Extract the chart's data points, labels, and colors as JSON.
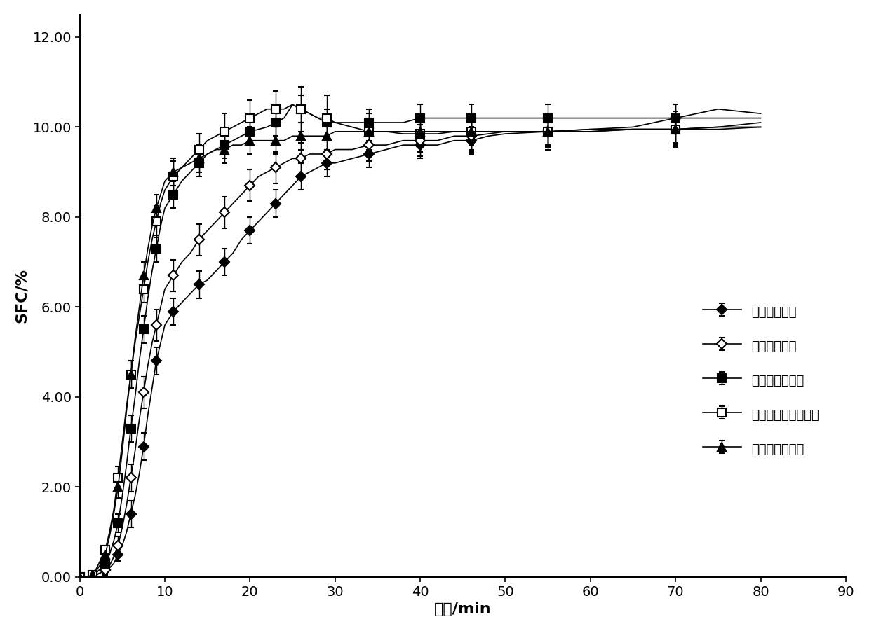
{
  "title": "",
  "xlabel": "时间/min",
  "ylabel": "SFC/%",
  "xlim": [
    0,
    90
  ],
  "ylim": [
    0,
    12.5
  ],
  "yticks": [
    0.0,
    2.0,
    4.0,
    6.0,
    8.0,
    10.0,
    12.0
  ],
  "xticks": [
    0,
    10,
    20,
    30,
    40,
    50,
    60,
    70,
    80,
    90
  ],
  "series": [
    {
      "label": "原料油未超声",
      "marker": "D",
      "marker_size": 7,
      "fillstyle": "full",
      "color": "#000000",
      "x": [
        0,
        0.5,
        1,
        1.5,
        2,
        2.5,
        3,
        3.5,
        4,
        4.5,
        5,
        5.5,
        6,
        6.5,
        7,
        7.5,
        8,
        8.5,
        9,
        9.5,
        10,
        11,
        12,
        13,
        14,
        15,
        16,
        17,
        18,
        19,
        20,
        21,
        22,
        23,
        24,
        25,
        26,
        27,
        28,
        29,
        30,
        32,
        34,
        36,
        38,
        40,
        42,
        44,
        46,
        48,
        50,
        55,
        60,
        65,
        70,
        75,
        80
      ],
      "y": [
        0,
        0,
        0,
        0,
        0.05,
        0.1,
        0.15,
        0.2,
        0.3,
        0.5,
        0.7,
        1.0,
        1.4,
        1.8,
        2.3,
        2.9,
        3.6,
        4.2,
        4.8,
        5.2,
        5.6,
        5.9,
        6.1,
        6.3,
        6.5,
        6.6,
        6.8,
        7.0,
        7.2,
        7.5,
        7.7,
        7.9,
        8.1,
        8.3,
        8.5,
        8.7,
        8.9,
        9.0,
        9.1,
        9.2,
        9.2,
        9.3,
        9.4,
        9.5,
        9.6,
        9.6,
        9.6,
        9.7,
        9.7,
        9.8,
        9.85,
        9.9,
        9.95,
        10.0,
        10.2,
        10.4,
        10.3
      ],
      "yerr": [
        0,
        0,
        0,
        0,
        0.05,
        0.05,
        0.1,
        0.1,
        0.1,
        0.15,
        0.2,
        0.2,
        0.3,
        0.3,
        0.3,
        0.3,
        0.3,
        0.3,
        0.3,
        0.3,
        0.3,
        0.3,
        0.3,
        0.3,
        0.3,
        0.3,
        0.3,
        0.3,
        0.3,
        0.3,
        0.3,
        0.3,
        0.3,
        0.3,
        0.3,
        0.3,
        0.3,
        0.3,
        0.3,
        0.3,
        0.3,
        0.3,
        0.3,
        0.3,
        0.3,
        0.3,
        0.3,
        0.3,
        0.3,
        0.3,
        0.3,
        0.3,
        0.3,
        0.3,
        0.3,
        0.4,
        0.3
      ]
    },
    {
      "label": "硬脂酰乳酸钠",
      "marker": "D",
      "marker_size": 7,
      "fillstyle": "none",
      "color": "#000000",
      "x": [
        0,
        0.5,
        1,
        1.5,
        2,
        2.5,
        3,
        3.5,
        4,
        4.5,
        5,
        5.5,
        6,
        6.5,
        7,
        7.5,
        8,
        8.5,
        9,
        9.5,
        10,
        11,
        12,
        13,
        14,
        15,
        16,
        17,
        18,
        19,
        20,
        21,
        22,
        23,
        24,
        25,
        26,
        27,
        28,
        29,
        30,
        32,
        34,
        36,
        38,
        40,
        42,
        44,
        46,
        48,
        50,
        55,
        60,
        65,
        70,
        75,
        80
      ],
      "y": [
        0,
        0,
        0,
        0,
        0.05,
        0.1,
        0.15,
        0.25,
        0.45,
        0.7,
        1.1,
        1.6,
        2.2,
        2.8,
        3.5,
        4.1,
        4.7,
        5.2,
        5.6,
        6.0,
        6.4,
        6.7,
        7.0,
        7.2,
        7.5,
        7.7,
        7.9,
        8.1,
        8.3,
        8.5,
        8.7,
        8.9,
        9.0,
        9.1,
        9.2,
        9.3,
        9.3,
        9.4,
        9.4,
        9.4,
        9.5,
        9.5,
        9.6,
        9.6,
        9.7,
        9.7,
        9.7,
        9.8,
        9.8,
        9.85,
        9.9,
        9.9,
        9.95,
        9.95,
        9.95,
        10.0,
        10.0
      ],
      "yerr": [
        0,
        0,
        0,
        0,
        0.05,
        0.05,
        0.1,
        0.1,
        0.15,
        0.2,
        0.25,
        0.3,
        0.3,
        0.3,
        0.3,
        0.35,
        0.35,
        0.35,
        0.35,
        0.35,
        0.35,
        0.35,
        0.35,
        0.35,
        0.35,
        0.35,
        0.35,
        0.35,
        0.35,
        0.35,
        0.35,
        0.35,
        0.35,
        0.35,
        0.35,
        0.35,
        0.35,
        0.35,
        0.35,
        0.35,
        0.35,
        0.35,
        0.35,
        0.35,
        0.35,
        0.35,
        0.35,
        0.35,
        0.35,
        0.35,
        0.35,
        0.35,
        0.35,
        0.35,
        0.35,
        0.35,
        0.35
      ]
    },
    {
      "label": "聚甘油脂肪酸酯",
      "marker": "s",
      "marker_size": 8,
      "fillstyle": "full",
      "color": "#000000",
      "x": [
        0,
        0.5,
        1,
        1.5,
        2,
        2.5,
        3,
        3.5,
        4,
        4.5,
        5,
        5.5,
        6,
        6.5,
        7,
        7.5,
        8,
        8.5,
        9,
        9.5,
        10,
        11,
        12,
        13,
        14,
        15,
        16,
        17,
        18,
        19,
        20,
        21,
        22,
        23,
        24,
        25,
        26,
        27,
        28,
        29,
        30,
        32,
        34,
        36,
        38,
        40,
        42,
        44,
        46,
        48,
        50,
        55,
        60,
        65,
        70,
        75,
        80
      ],
      "y": [
        0,
        0,
        0,
        0.05,
        0.1,
        0.2,
        0.3,
        0.5,
        0.8,
        1.2,
        1.8,
        2.5,
        3.3,
        4.0,
        4.8,
        5.5,
        6.2,
        6.8,
        7.3,
        7.8,
        8.2,
        8.5,
        8.8,
        9.0,
        9.2,
        9.4,
        9.5,
        9.6,
        9.7,
        9.8,
        9.9,
        9.95,
        10.0,
        10.1,
        10.2,
        10.5,
        10.4,
        10.3,
        10.2,
        10.1,
        10.1,
        10.1,
        10.1,
        10.1,
        10.1,
        10.2,
        10.2,
        10.2,
        10.2,
        10.2,
        10.2,
        10.2,
        10.2,
        10.2,
        10.2,
        10.2,
        10.2
      ],
      "yerr": [
        0,
        0,
        0,
        0.05,
        0.05,
        0.1,
        0.1,
        0.15,
        0.2,
        0.2,
        0.25,
        0.3,
        0.3,
        0.3,
        0.3,
        0.3,
        0.3,
        0.3,
        0.3,
        0.3,
        0.3,
        0.3,
        0.3,
        0.3,
        0.3,
        0.3,
        0.3,
        0.3,
        0.3,
        0.3,
        0.3,
        0.3,
        0.3,
        0.3,
        0.3,
        0.3,
        0.3,
        0.3,
        0.3,
        0.3,
        0.3,
        0.3,
        0.3,
        0.3,
        0.3,
        0.3,
        0.3,
        0.3,
        0.3,
        0.3,
        0.3,
        0.3,
        0.3,
        0.3,
        0.3,
        0.3,
        0.3
      ]
    },
    {
      "label": "蒸馏单硬脂酸甘油酯",
      "marker": "s",
      "marker_size": 8,
      "fillstyle": "none",
      "color": "#000000",
      "x": [
        0,
        0.5,
        1,
        1.5,
        2,
        2.5,
        3,
        3.5,
        4,
        4.5,
        5,
        5.5,
        6,
        6.5,
        7,
        7.5,
        8,
        8.5,
        9,
        9.5,
        10,
        11,
        12,
        13,
        14,
        15,
        16,
        17,
        18,
        19,
        20,
        21,
        22,
        23,
        24,
        25,
        26,
        27,
        28,
        29,
        30,
        32,
        34,
        36,
        38,
        40,
        42,
        44,
        46,
        48,
        50,
        55,
        60,
        65,
        70,
        75,
        80
      ],
      "y": [
        0,
        0,
        0,
        0.05,
        0.2,
        0.4,
        0.6,
        1.0,
        1.5,
        2.2,
        3.0,
        3.8,
        4.5,
        5.2,
        5.8,
        6.4,
        7.0,
        7.5,
        7.9,
        8.3,
        8.6,
        8.9,
        9.1,
        9.3,
        9.5,
        9.7,
        9.8,
        9.9,
        10.0,
        10.1,
        10.2,
        10.3,
        10.4,
        10.4,
        10.4,
        10.5,
        10.4,
        10.3,
        10.2,
        10.2,
        10.1,
        10.0,
        9.9,
        9.9,
        9.85,
        9.85,
        9.85,
        9.9,
        9.9,
        9.9,
        9.9,
        9.9,
        9.9,
        9.95,
        9.95,
        9.95,
        10.0
      ],
      "yerr": [
        0,
        0,
        0,
        0.05,
        0.05,
        0.1,
        0.1,
        0.15,
        0.2,
        0.25,
        0.3,
        0.3,
        0.3,
        0.3,
        0.3,
        0.3,
        0.3,
        0.35,
        0.35,
        0.35,
        0.35,
        0.35,
        0.35,
        0.35,
        0.35,
        0.4,
        0.4,
        0.4,
        0.4,
        0.4,
        0.4,
        0.4,
        0.4,
        0.4,
        0.5,
        0.5,
        0.5,
        0.5,
        0.5,
        0.5,
        0.5,
        0.5,
        0.4,
        0.4,
        0.4,
        0.4,
        0.4,
        0.4,
        0.4,
        0.4,
        0.4,
        0.4,
        0.4,
        0.4,
        0.4,
        0.4,
        0.4
      ]
    },
    {
      "label": "丙二醇脂肪酸酯",
      "marker": "^",
      "marker_size": 8,
      "fillstyle": "full",
      "color": "#000000",
      "x": [
        0,
        0.5,
        1,
        1.5,
        2,
        2.5,
        3,
        3.5,
        4,
        4.5,
        5,
        5.5,
        6,
        6.5,
        7,
        7.5,
        8,
        8.5,
        9,
        9.5,
        10,
        11,
        12,
        13,
        14,
        15,
        16,
        17,
        18,
        19,
        20,
        21,
        22,
        23,
        24,
        25,
        26,
        27,
        28,
        29,
        30,
        32,
        34,
        36,
        38,
        40,
        42,
        44,
        46,
        48,
        50,
        55,
        60,
        65,
        70,
        75,
        80
      ],
      "y": [
        0,
        0,
        0,
        0.05,
        0.15,
        0.3,
        0.5,
        0.9,
        1.4,
        2.0,
        2.8,
        3.7,
        4.5,
        5.3,
        6.0,
        6.7,
        7.3,
        7.8,
        8.2,
        8.5,
        8.8,
        9.0,
        9.1,
        9.2,
        9.3,
        9.4,
        9.5,
        9.5,
        9.6,
        9.6,
        9.7,
        9.7,
        9.7,
        9.7,
        9.7,
        9.8,
        9.8,
        9.8,
        9.8,
        9.8,
        9.9,
        9.9,
        9.9,
        9.9,
        9.9,
        9.9,
        9.9,
        9.9,
        9.9,
        9.9,
        9.9,
        9.9,
        9.9,
        9.95,
        9.95,
        10.0,
        10.1
      ],
      "yerr": [
        0,
        0,
        0,
        0.05,
        0.05,
        0.1,
        0.1,
        0.15,
        0.2,
        0.25,
        0.3,
        0.3,
        0.3,
        0.3,
        0.3,
        0.3,
        0.3,
        0.3,
        0.3,
        0.3,
        0.3,
        0.3,
        0.3,
        0.3,
        0.3,
        0.3,
        0.3,
        0.3,
        0.3,
        0.3,
        0.3,
        0.3,
        0.3,
        0.3,
        0.3,
        0.3,
        0.3,
        0.3,
        0.3,
        0.3,
        0.3,
        0.3,
        0.3,
        0.3,
        0.3,
        0.3,
        0.3,
        0.3,
        0.3,
        0.3,
        0.3,
        0.3,
        0.3,
        0.3,
        0.3,
        0.3,
        0.3
      ]
    }
  ],
  "background_color": "#ffffff",
  "font_size_ticks": 14,
  "font_size_labels": 16,
  "font_size_legend": 13
}
